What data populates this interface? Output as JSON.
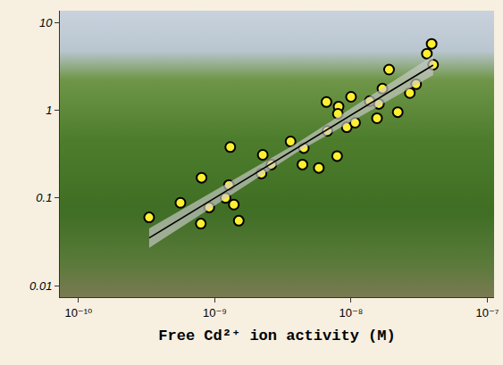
{
  "chart_data": {
    "type": "scatter",
    "x_label": "Free Cd²⁺ ion activity (M)",
    "log": true,
    "grid": false,
    "xlim": [
      7.3e-11,
      1.12e-07
    ],
    "ylim": [
      0.0074,
      13.6
    ],
    "xticks": [
      {
        "value": 1e-10,
        "label": "10⁻¹⁰"
      },
      {
        "value": 1e-09,
        "label": "10⁻⁹"
      },
      {
        "value": 1e-08,
        "label": "10⁻⁸"
      },
      {
        "value": 1e-07,
        "label": "10⁻⁷"
      }
    ],
    "yticks": [
      0.01,
      0.1,
      1,
      10
    ],
    "series": [
      {
        "type": "scatter",
        "marker": "circle",
        "color": "#fff030",
        "x": [
          3.3e-10,
          5.6e-10,
          8e-10,
          7.9e-10,
          9.1e-10,
          1.3e-09,
          1.2e-09,
          1.27e-09,
          1.38e-09,
          1.5e-09,
          2.25e-09,
          2.2e-09,
          2.6e-09,
          3.6e-09,
          4.5e-09,
          4.4e-09,
          5.8e-09,
          6.6e-09,
          6.7e-09,
          7.9e-09,
          8.1e-09,
          8e-09,
          1e-08,
          9.3e-09,
          1.07e-08,
          1.37e-08,
          1.55e-08,
          1.6e-08,
          1.7e-08,
          1.9e-08,
          2.2e-08,
          2.7e-08,
          3e-08,
          3.6e-08,
          3.9e-08,
          4e-08
        ],
        "values": [
          0.06,
          0.088,
          0.17,
          0.051,
          0.078,
          0.38,
          0.1,
          0.14,
          0.084,
          0.055,
          0.31,
          0.19,
          0.24,
          0.44,
          0.37,
          0.24,
          0.22,
          1.24,
          0.58,
          0.3,
          1.1,
          0.91,
          1.42,
          0.64,
          0.72,
          1.27,
          0.81,
          1.18,
          1.76,
          2.9,
          0.95,
          1.57,
          1.98,
          4.4,
          5.7,
          3.3
        ]
      },
      {
        "type": "line",
        "line_style": "solid",
        "color": "#000000",
        "x": [
          3.3e-10,
          4e-09,
          4e-08
        ],
        "values": [
          0.035,
          0.37,
          3.26
        ],
        "lower": [
          0.027,
          0.33,
          2.5
        ],
        "upper": [
          0.045,
          0.42,
          4.2
        ]
      }
    ]
  }
}
